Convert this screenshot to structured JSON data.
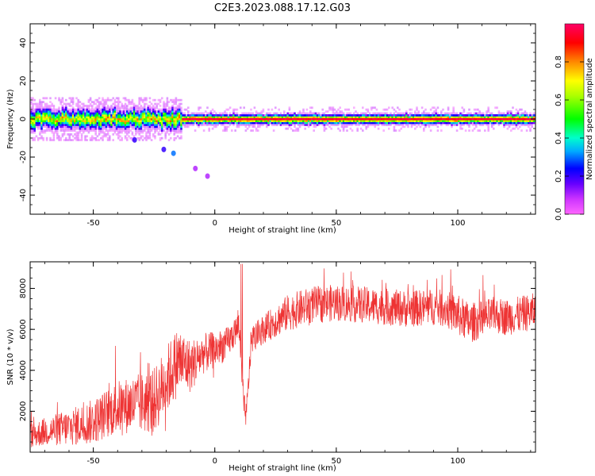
{
  "figure": {
    "title": "C2E3.2023.088.17.12.G03"
  },
  "chart_data": [
    {
      "type": "heatmap",
      "xlabel": "Height of straight line (km)",
      "ylabel": "Frequency (Hz)",
      "xlim": [
        -76,
        132
      ],
      "ylim": [
        -50,
        50
      ],
      "xticks": [
        -50,
        0,
        50,
        100
      ],
      "yticks": [
        -40,
        -20,
        0,
        20,
        40
      ],
      "grid": false,
      "colorbar": {
        "label": "Normalized spectral amplitude",
        "range": [
          0,
          1
        ],
        "ticks": [
          0.0,
          0.2,
          0.4,
          0.6,
          0.8
        ],
        "colors": [
          "#ff66ff",
          "#9900ff",
          "#0000ff",
          "#00ccff",
          "#00ff80",
          "#00ff00",
          "#ffff00",
          "#ff8000",
          "#ff0000",
          "#ff0066"
        ]
      },
      "signal": {
        "center_frequency_hz": 0,
        "peak_amplitude": 0.95,
        "noisy_below_km": -14,
        "scatter_points": [
          {
            "x": -33,
            "y": -11,
            "amplitude": 0.2
          },
          {
            "x": -21,
            "y": -16,
            "amplitude": 0.2
          },
          {
            "x": -17,
            "y": -18,
            "amplitude": 0.3
          },
          {
            "x": -8,
            "y": -26,
            "amplitude": 0.1
          },
          {
            "x": -3,
            "y": -30,
            "amplitude": 0.1
          }
        ]
      }
    },
    {
      "type": "line",
      "xlabel": "Height of straight line (km)",
      "ylabel": "SNR (10 * v/v)",
      "xlim": [
        -76,
        132
      ],
      "ylim": [
        0,
        9300
      ],
      "xticks": [
        -50,
        0,
        50,
        100
      ],
      "yticks": [
        2000,
        4000,
        6000,
        8000
      ],
      "grid": false,
      "color": "#ee3333",
      "x": [
        -76,
        -70,
        -60,
        -50,
        -40,
        -30,
        -25,
        -20,
        -15,
        -10,
        -5,
        0,
        5,
        8,
        10,
        11,
        12,
        13,
        15,
        20,
        25,
        30,
        35,
        40,
        50,
        60,
        70,
        80,
        90,
        95,
        100,
        105,
        110,
        115,
        120,
        125,
        132
      ],
      "y": [
        800,
        1000,
        1200,
        1500,
        2200,
        2400,
        2500,
        3500,
        4500,
        4200,
        4800,
        5000,
        5300,
        5800,
        6200,
        4000,
        2200,
        1800,
        5500,
        6000,
        6400,
        6800,
        7000,
        7200,
        7300,
        7200,
        7100,
        7000,
        7100,
        7000,
        6700,
        6300,
        6500,
        6700,
        6600,
        6700,
        6900
      ],
      "y_spread": [
        600,
        700,
        900,
        1100,
        1300,
        1500,
        1600,
        1700,
        1700,
        1300,
        1000,
        900,
        800,
        700,
        800,
        800,
        700,
        600,
        700,
        700,
        800,
        900,
        900,
        900,
        900,
        900,
        900,
        900,
        900,
        900,
        1000,
        1000,
        900,
        900,
        900,
        900,
        900
      ]
    }
  ]
}
